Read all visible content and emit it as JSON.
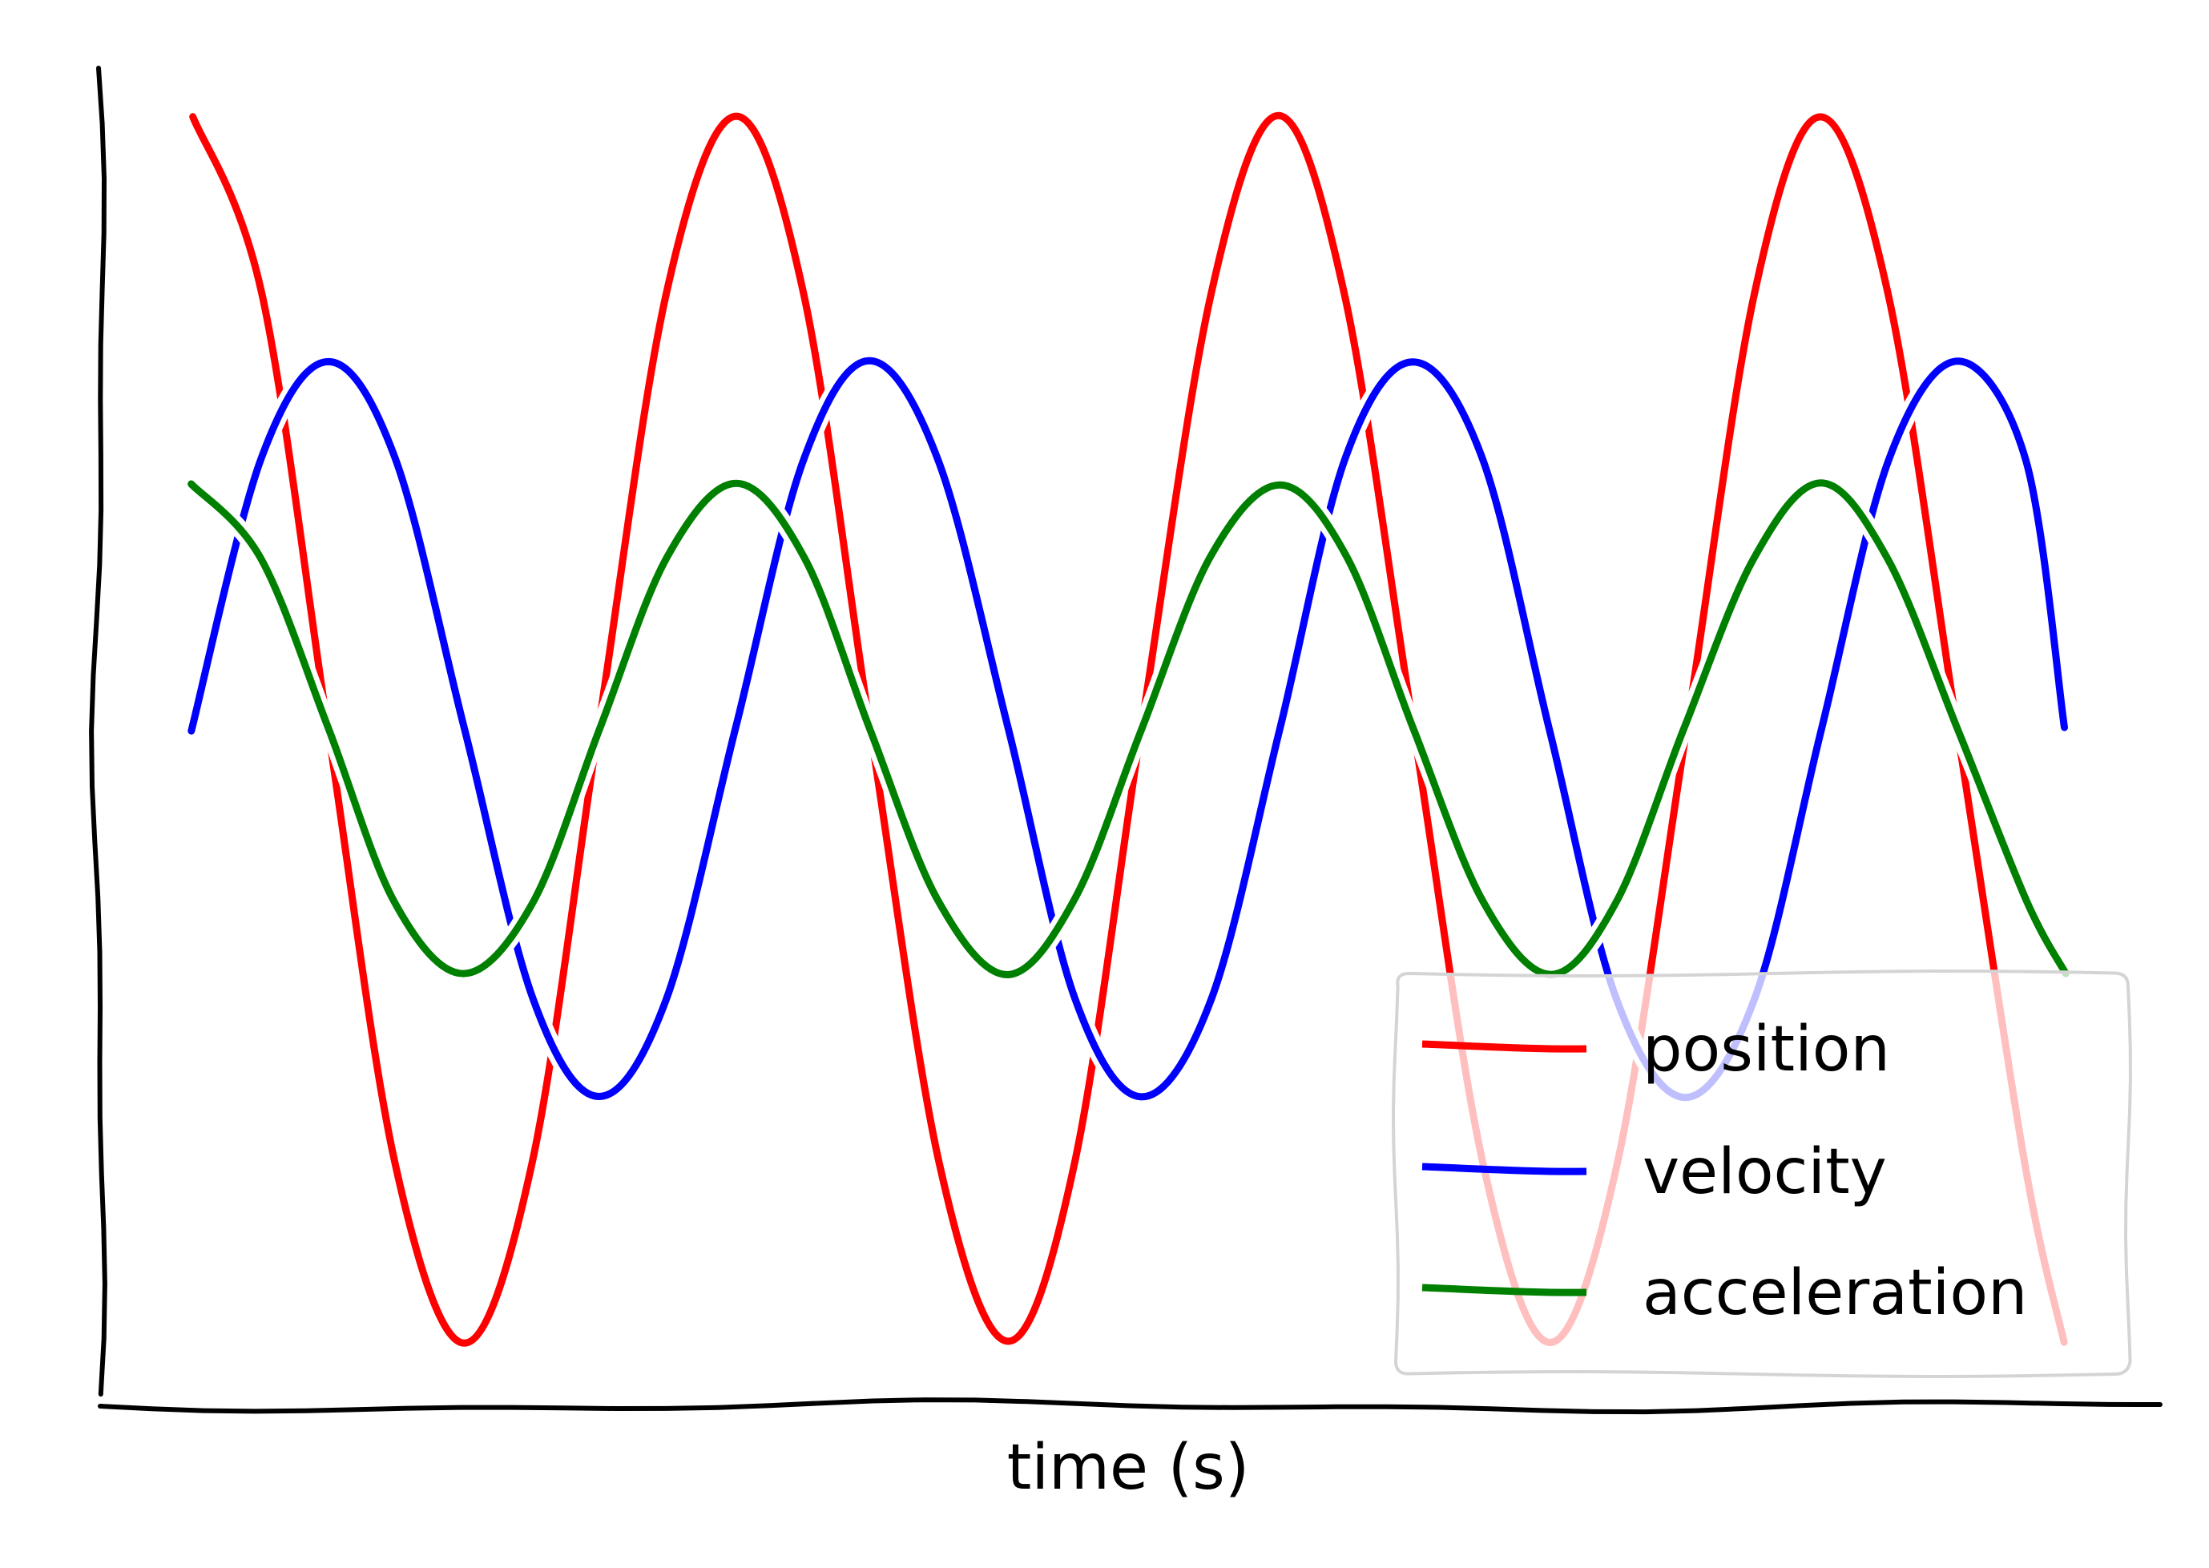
{
  "chart_data": {
    "type": "line",
    "style": "hand-drawn sketch",
    "title": "",
    "xlabel": "time (s)",
    "ylabel": "",
    "xlim": [
      0,
      1.38
    ],
    "ylim": [
      -1.0,
      1.0
    ],
    "grid": false,
    "legend_position": "bottom-right",
    "series": [
      {
        "name": "position",
        "color": "#ff0000",
        "x": [
          0,
          0.05,
          0.1,
          0.15,
          0.2,
          0.25,
          0.3,
          0.35,
          0.4,
          0.45,
          0.5,
          0.55,
          0.6,
          0.65,
          0.7,
          0.75,
          0.8,
          0.85,
          0.9,
          0.95,
          1.0,
          1.05,
          1.1,
          1.15,
          1.2,
          1.25,
          1.3,
          1.35,
          1.38
        ],
        "y": [
          1.0,
          0.71,
          0.0,
          -0.71,
          -1.0,
          -0.71,
          0.0,
          0.71,
          1.0,
          0.71,
          0.0,
          -0.71,
          -1.0,
          -0.71,
          0.0,
          0.71,
          1.0,
          0.71,
          0.0,
          -0.71,
          -1.0,
          -0.71,
          0.0,
          0.71,
          1.0,
          0.71,
          0.0,
          -0.71,
          -1.0
        ]
      },
      {
        "name": "velocity",
        "color": "#0000ff",
        "x": [
          0,
          0.05,
          0.1,
          0.15,
          0.2,
          0.25,
          0.3,
          0.35,
          0.4,
          0.45,
          0.5,
          0.55,
          0.6,
          0.65,
          0.7,
          0.75,
          0.8,
          0.85,
          0.9,
          0.95,
          1.0,
          1.05,
          1.1,
          1.15,
          1.2,
          1.25,
          1.3,
          1.35,
          1.38
        ],
        "y": [
          0.0,
          0.44,
          0.6,
          0.44,
          0.0,
          -0.44,
          -0.6,
          -0.44,
          0.0,
          0.44,
          0.6,
          0.44,
          0.0,
          -0.44,
          -0.6,
          -0.44,
          0.0,
          0.44,
          0.6,
          0.44,
          0.0,
          -0.44,
          -0.6,
          -0.44,
          0.0,
          0.44,
          0.6,
          0.44,
          0.0
        ]
      },
      {
        "name": "acceleration",
        "color": "#008000",
        "x": [
          0,
          0.05,
          0.1,
          0.15,
          0.2,
          0.25,
          0.3,
          0.35,
          0.4,
          0.45,
          0.5,
          0.55,
          0.6,
          0.65,
          0.7,
          0.75,
          0.8,
          0.85,
          0.9,
          0.95,
          1.0,
          1.05,
          1.1,
          1.15,
          1.2,
          1.25,
          1.3,
          1.35,
          1.38
        ],
        "y": [
          0.4,
          0.28,
          0.0,
          -0.28,
          -0.4,
          -0.28,
          0.0,
          0.28,
          0.4,
          0.28,
          0.0,
          -0.28,
          -0.4,
          -0.28,
          0.0,
          0.28,
          0.4,
          0.28,
          0.0,
          -0.28,
          -0.4,
          -0.28,
          0.0,
          0.28,
          0.4,
          0.28,
          0.0,
          -0.28,
          -0.4
        ]
      }
    ]
  }
}
